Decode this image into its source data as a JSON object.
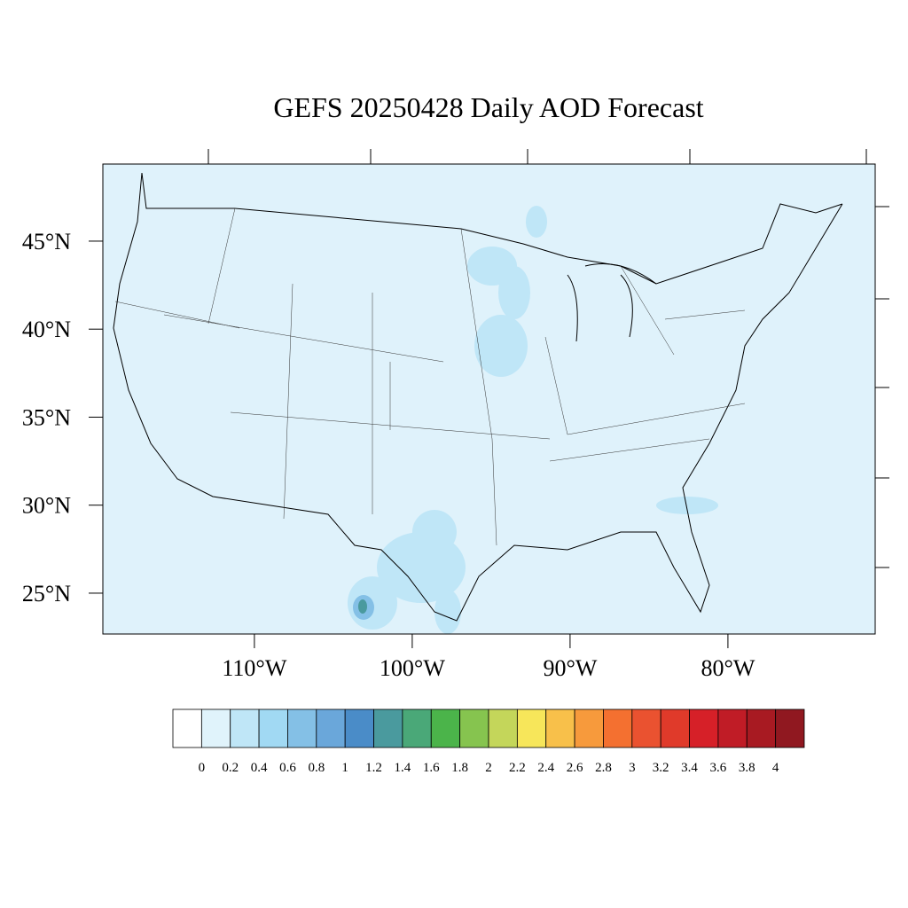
{
  "title": "GEFS 20250428 Daily AOD Forecast",
  "map": {
    "latlim": [
      22.68,
      49.38
    ],
    "lonlim": [
      -119.6,
      -70.67
    ],
    "lat_ticks": [
      {
        "value": 45,
        "label": "45°N"
      },
      {
        "value": 40,
        "label": "40°N"
      },
      {
        "value": 35,
        "label": "35°N"
      },
      {
        "value": 30,
        "label": "30°N"
      },
      {
        "value": 25,
        "label": "25°N"
      }
    ],
    "lon_ticks": [
      {
        "value": -110,
        "label": "110°W"
      },
      {
        "value": -100,
        "label": "100°W"
      },
      {
        "value": -90,
        "label": "90°W"
      },
      {
        "value": -80,
        "label": "80°W"
      }
    ]
  },
  "colorbar": {
    "levels": [
      0,
      0.2,
      0.4,
      0.6,
      0.8,
      1,
      1.2,
      1.4,
      1.6,
      1.8,
      2,
      2.2,
      2.4,
      2.6,
      2.8,
      3,
      3.2,
      3.4,
      3.6,
      3.8,
      4
    ],
    "colors": [
      "#ffffff",
      "#e0f3fb",
      "#bfe6f7",
      "#a1d9f3",
      "#84c0e6",
      "#6aa7da",
      "#4a8cc8",
      "#4a9a9e",
      "#4aa878",
      "#4bb44a",
      "#86c44f",
      "#c4d65a",
      "#f7e65a",
      "#f8c04a",
      "#f79a3c",
      "#f47030",
      "#ea5230",
      "#e03a2a",
      "#d62028",
      "#c01c26",
      "#a81a22",
      "#901820"
    ]
  }
}
